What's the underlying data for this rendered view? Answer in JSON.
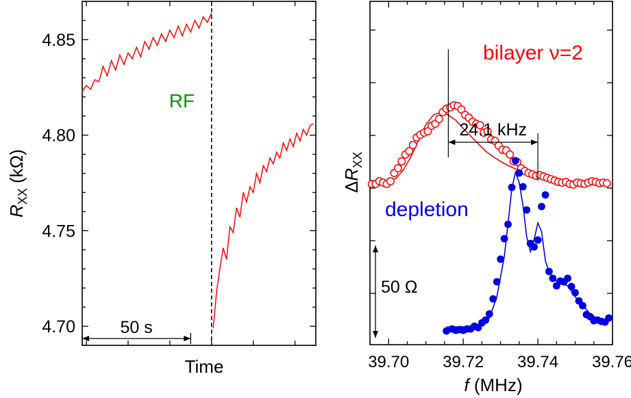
{
  "chart_data": [
    {
      "type": "line",
      "xlabel": "Time",
      "ylabel_main": "R",
      "ylabel_sub": "XX",
      "ylabel_unit": " (kΩ)",
      "ylim": [
        4.69,
        4.87
      ],
      "yticks": [
        {
          "value": 4.7,
          "label": "4.70"
        },
        {
          "value": 4.75,
          "label": "4.75"
        },
        {
          "value": 4.8,
          "label": "4.80"
        },
        {
          "value": 4.85,
          "label": "4.85"
        }
      ],
      "xlim": [
        -155,
        125
      ],
      "rf_marker": {
        "x": 0,
        "label": "RF"
      },
      "scale_bar": {
        "x_from": -155,
        "x_to": -25,
        "label": "50 s"
      },
      "line_color": "#ff0000",
      "rf_color": "#009900",
      "series_before": {
        "x": [
          -155,
          -150,
          -145,
          -140,
          -135,
          -130,
          -125,
          -120,
          -115,
          -110,
          -105,
          -100,
          -95,
          -90,
          -85,
          -80,
          -75,
          -70,
          -65,
          -60,
          -55,
          -50,
          -45,
          -40,
          -35,
          -30,
          -25,
          -20,
          -15,
          -10,
          -5,
          0
        ],
        "y": [
          4.823,
          4.826,
          4.824,
          4.829,
          4.828,
          4.836,
          4.831,
          4.839,
          4.834,
          4.842,
          4.837,
          4.843,
          4.84,
          4.846,
          4.841,
          4.849,
          4.845,
          4.851,
          4.847,
          4.853,
          4.849,
          4.855,
          4.851,
          4.857,
          4.852,
          4.858,
          4.854,
          4.86,
          4.856,
          4.862,
          4.859,
          4.864
        ]
      },
      "series_after": {
        "x": [
          2,
          6,
          10,
          14,
          18,
          22,
          26,
          30,
          34,
          38,
          42,
          46,
          50,
          54,
          58,
          62,
          66,
          70,
          74,
          78,
          82,
          86,
          90,
          94,
          98,
          102,
          106,
          110,
          114,
          118,
          122
        ],
        "y": [
          4.699,
          4.718,
          4.73,
          4.741,
          4.735,
          4.752,
          4.749,
          4.762,
          4.757,
          4.77,
          4.765,
          4.773,
          4.77,
          4.78,
          4.775,
          4.784,
          4.781,
          4.788,
          4.785,
          4.791,
          4.788,
          4.796,
          4.792,
          4.798,
          4.794,
          4.801,
          4.797,
          4.803,
          4.8,
          4.805,
          4.806
        ]
      }
    },
    {
      "type": "scatter",
      "xlabel_italic": "f",
      "xlabel_rest": " (MHz)",
      "ylabel_delta": "Δ",
      "ylabel_main": "R",
      "ylabel_sub": "XX",
      "xlim": [
        39.695,
        39.76
      ],
      "xticks": [
        {
          "value": 39.7,
          "label": "39.70"
        },
        {
          "value": 39.72,
          "label": "39.72"
        },
        {
          "value": 39.74,
          "label": "39.74"
        },
        {
          "value": 39.76,
          "label": "39.76"
        }
      ],
      "ylim": [
        0,
        330
      ],
      "bilayer": {
        "label": "bilayer ν=2",
        "color": "#ff0000",
        "points_x": [
          39.6955,
          39.6965,
          39.6975,
          39.6985,
          39.6995,
          39.7005,
          39.7015,
          39.7025,
          39.7035,
          39.7045,
          39.7055,
          39.7065,
          39.7075,
          39.7085,
          39.7095,
          39.7105,
          39.7115,
          39.7125,
          39.7135,
          39.7145,
          39.7155,
          39.7165,
          39.7175,
          39.7185,
          39.7195,
          39.7205,
          39.7215,
          39.7225,
          39.7235,
          39.7245,
          39.7255,
          39.7265,
          39.7275,
          39.7285,
          39.7295,
          39.7305,
          39.7315,
          39.7325,
          39.7335,
          39.7345,
          39.7355,
          39.7365,
          39.7375,
          39.7385,
          39.7395,
          39.7405,
          39.7415,
          39.7425,
          39.7435,
          39.7445,
          39.7455,
          39.7465,
          39.7475,
          39.7485,
          39.7495,
          39.7505,
          39.7515,
          39.7525,
          39.7535,
          39.7545,
          39.7555,
          39.7565,
          39.7575,
          39.7585
        ],
        "points_y": [
          222,
          222,
          226,
          224,
          222,
          226,
          238,
          245,
          255,
          265,
          270,
          279,
          290,
          294,
          297,
          299,
          307,
          310,
          317,
          327,
          332,
          334,
          337,
          336,
          331,
          323,
          319,
          313,
          310,
          308,
          297,
          299,
          287,
          285,
          278,
          272,
          271,
          265,
          255,
          254,
          245,
          241,
          238,
          236,
          234,
          235,
          233,
          231,
          229,
          227,
          225,
          224,
          225,
          222,
          221,
          224,
          223,
          222,
          224,
          226,
          225,
          223,
          224,
          223
        ],
        "fit_x": [
          39.6955,
          39.698,
          39.7,
          39.702,
          39.704,
          39.706,
          39.708,
          39.71,
          39.712,
          39.713,
          39.714,
          39.715,
          39.716,
          39.718,
          39.72,
          39.722,
          39.724,
          39.726,
          39.728,
          39.73,
          39.732,
          39.734,
          39.736,
          39.738,
          39.74,
          39.742,
          39.744,
          39.746,
          39.748,
          39.75,
          39.752,
          39.754,
          39.756,
          39.7585
        ],
        "fit_y": [
          221,
          222,
          224,
          230,
          243,
          262,
          286,
          309,
          323,
          325,
          326,
          325,
          323,
          315,
          303,
          292,
          281,
          270,
          262,
          255,
          249,
          244,
          240,
          236,
          233,
          230,
          228,
          227,
          226,
          225,
          224,
          223,
          223,
          223
        ]
      },
      "depletion": {
        "label": "depletion",
        "color": "#0000e0",
        "points_x": [
          39.7155,
          39.717,
          39.718,
          39.719,
          39.72,
          39.721,
          39.722,
          39.723,
          39.724,
          39.725,
          39.726,
          39.727,
          39.728,
          39.729,
          39.73,
          39.731,
          39.732,
          39.733,
          39.734,
          39.735,
          39.736,
          39.737,
          39.738,
          39.739,
          39.74,
          39.741,
          39.742,
          39.743,
          39.744,
          39.745,
          39.746,
          39.747,
          39.748,
          39.749,
          39.75,
          39.751,
          39.752,
          39.753,
          39.754,
          39.755,
          39.756,
          39.757,
          39.758,
          39.759
        ],
        "points_y": [
          7,
          10,
          8,
          9,
          8,
          10,
          10,
          14,
          12,
          19,
          23,
          32,
          54,
          79,
          112,
          142,
          163,
          217,
          256,
          238,
          218,
          184,
          135,
          130,
          140,
          189,
          206,
          94,
          84,
          73,
          80,
          79,
          84,
          72,
          63,
          51,
          44,
          31,
          28,
          22,
          23,
          21,
          20,
          26
        ],
        "fit_x": [
          39.7155,
          39.718,
          39.721,
          39.723,
          39.725,
          39.727,
          39.729,
          39.731,
          39.732,
          39.733,
          39.734,
          39.735,
          39.736,
          39.737,
          39.738,
          39.739,
          39.74,
          39.741,
          39.742,
          39.743,
          39.744,
          39.746,
          39.748,
          39.75,
          39.752,
          39.754,
          39.756,
          39.7585
        ],
        "fit_y": [
          13,
          13,
          13,
          14,
          17,
          26,
          57,
          116,
          164,
          215,
          239,
          224,
          191,
          145,
          123,
          141,
          165,
          152,
          110,
          93,
          83,
          77,
          73,
          57,
          45,
          32,
          25,
          22
        ]
      },
      "peak_width": {
        "x_from": 39.716,
        "x_to": 39.74,
        "label": "24.1 kHz"
      },
      "scale_bar": {
        "from": 0,
        "to": 132,
        "label": "50 Ω"
      }
    }
  ]
}
